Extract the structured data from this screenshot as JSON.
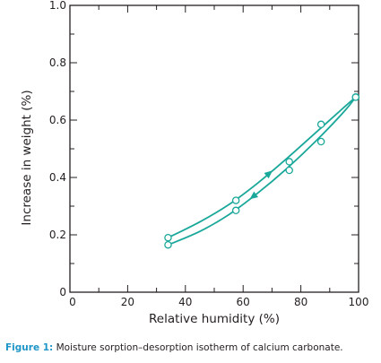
{
  "chart_data": {
    "type": "line",
    "xlabel": "Relative humidity (%)",
    "ylabel": "Increase in weight (%)",
    "xlim": [
      0,
      100
    ],
    "ylim": [
      0,
      1.0
    ],
    "x_ticks": [
      "0",
      "20",
      "40",
      "60",
      "80",
      "100"
    ],
    "y_ticks": [
      "0",
      "0.2",
      "0.4",
      "0.6",
      "0.8",
      "1.0"
    ],
    "grid": false,
    "series": [
      {
        "direction": "desorption",
        "points": [
          [
            34,
            0.19
          ],
          [
            57.5,
            0.32
          ],
          [
            76,
            0.455
          ],
          [
            87,
            0.585
          ],
          [
            99,
            0.68
          ]
        ],
        "curve": [
          [
            34,
            0.19
          ],
          [
            45,
            0.245
          ],
          [
            55,
            0.305
          ],
          [
            65,
            0.38
          ],
          [
            75,
            0.465
          ],
          [
            85,
            0.555
          ],
          [
            95,
            0.645
          ],
          [
            99,
            0.68
          ]
        ],
        "arrow": {
          "at_x": 69,
          "direction": "up"
        }
      },
      {
        "direction": "sorption",
        "points": [
          [
            34,
            0.165
          ],
          [
            57.5,
            0.285
          ],
          [
            76,
            0.425
          ],
          [
            87,
            0.525
          ],
          [
            99,
            0.68
          ]
        ],
        "curve": [
          [
            34,
            0.165
          ],
          [
            45,
            0.212
          ],
          [
            55,
            0.27
          ],
          [
            65,
            0.345
          ],
          [
            75,
            0.43
          ],
          [
            85,
            0.525
          ],
          [
            95,
            0.63
          ],
          [
            99,
            0.68
          ]
        ],
        "arrow": {
          "at_x": 63.5,
          "direction": "down"
        }
      }
    ],
    "colors": {
      "series": "#1aa89a",
      "axis": "#231f20"
    }
  },
  "caption": {
    "label": "Figure 1:",
    "text": "Moisture sorption–desorption isotherm of calcium carbonate.",
    "label_color": "#1e96c8"
  }
}
